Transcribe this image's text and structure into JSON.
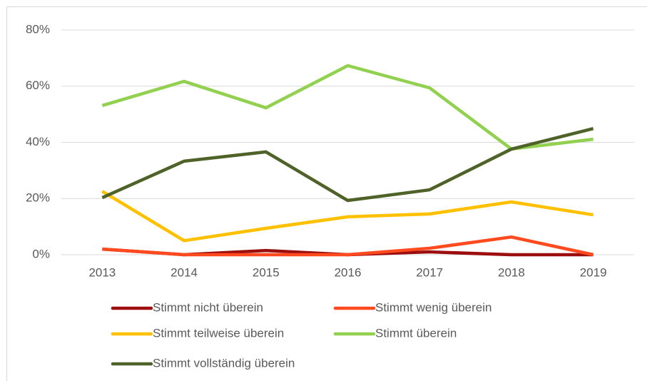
{
  "chart_data": {
    "type": "line",
    "categories": [
      "2013",
      "2014",
      "2015",
      "2016",
      "2017",
      "2018",
      "2019"
    ],
    "series": [
      {
        "name": "Stimmt nicht überein",
        "color": "#9c0e0e",
        "values": [
          2,
          0,
          1.5,
          0,
          1,
          0,
          0
        ]
      },
      {
        "name": "Stimmt wenig überein",
        "color": "#ff4a1f",
        "values": [
          2,
          0,
          0,
          0,
          2.3,
          6.3,
          0
        ]
      },
      {
        "name": "Stimmt teilweise überein",
        "color": "#ffc000",
        "values": [
          22.6,
          5,
          9.4,
          13.5,
          14.5,
          18.8,
          14.2
        ]
      },
      {
        "name": "Stimmt überein",
        "color": "#92d050",
        "values": [
          53.1,
          61.7,
          52.3,
          67.3,
          59.4,
          37.6,
          41.1
        ]
      },
      {
        "name": "Stimmt vollständig überein",
        "color": "#4f6228",
        "values": [
          20.3,
          33.3,
          36.6,
          19.3,
          23.1,
          37.6,
          44.9
        ]
      }
    ],
    "ylim": [
      0,
      80
    ],
    "yticks": [
      {
        "value": 0,
        "label": "0%"
      },
      {
        "value": 20,
        "label": "20%"
      },
      {
        "value": 40,
        "label": "40%"
      },
      {
        "value": 60,
        "label": "60%"
      },
      {
        "value": 80,
        "label": "80%"
      }
    ],
    "grid": true,
    "legend": "bottom"
  }
}
